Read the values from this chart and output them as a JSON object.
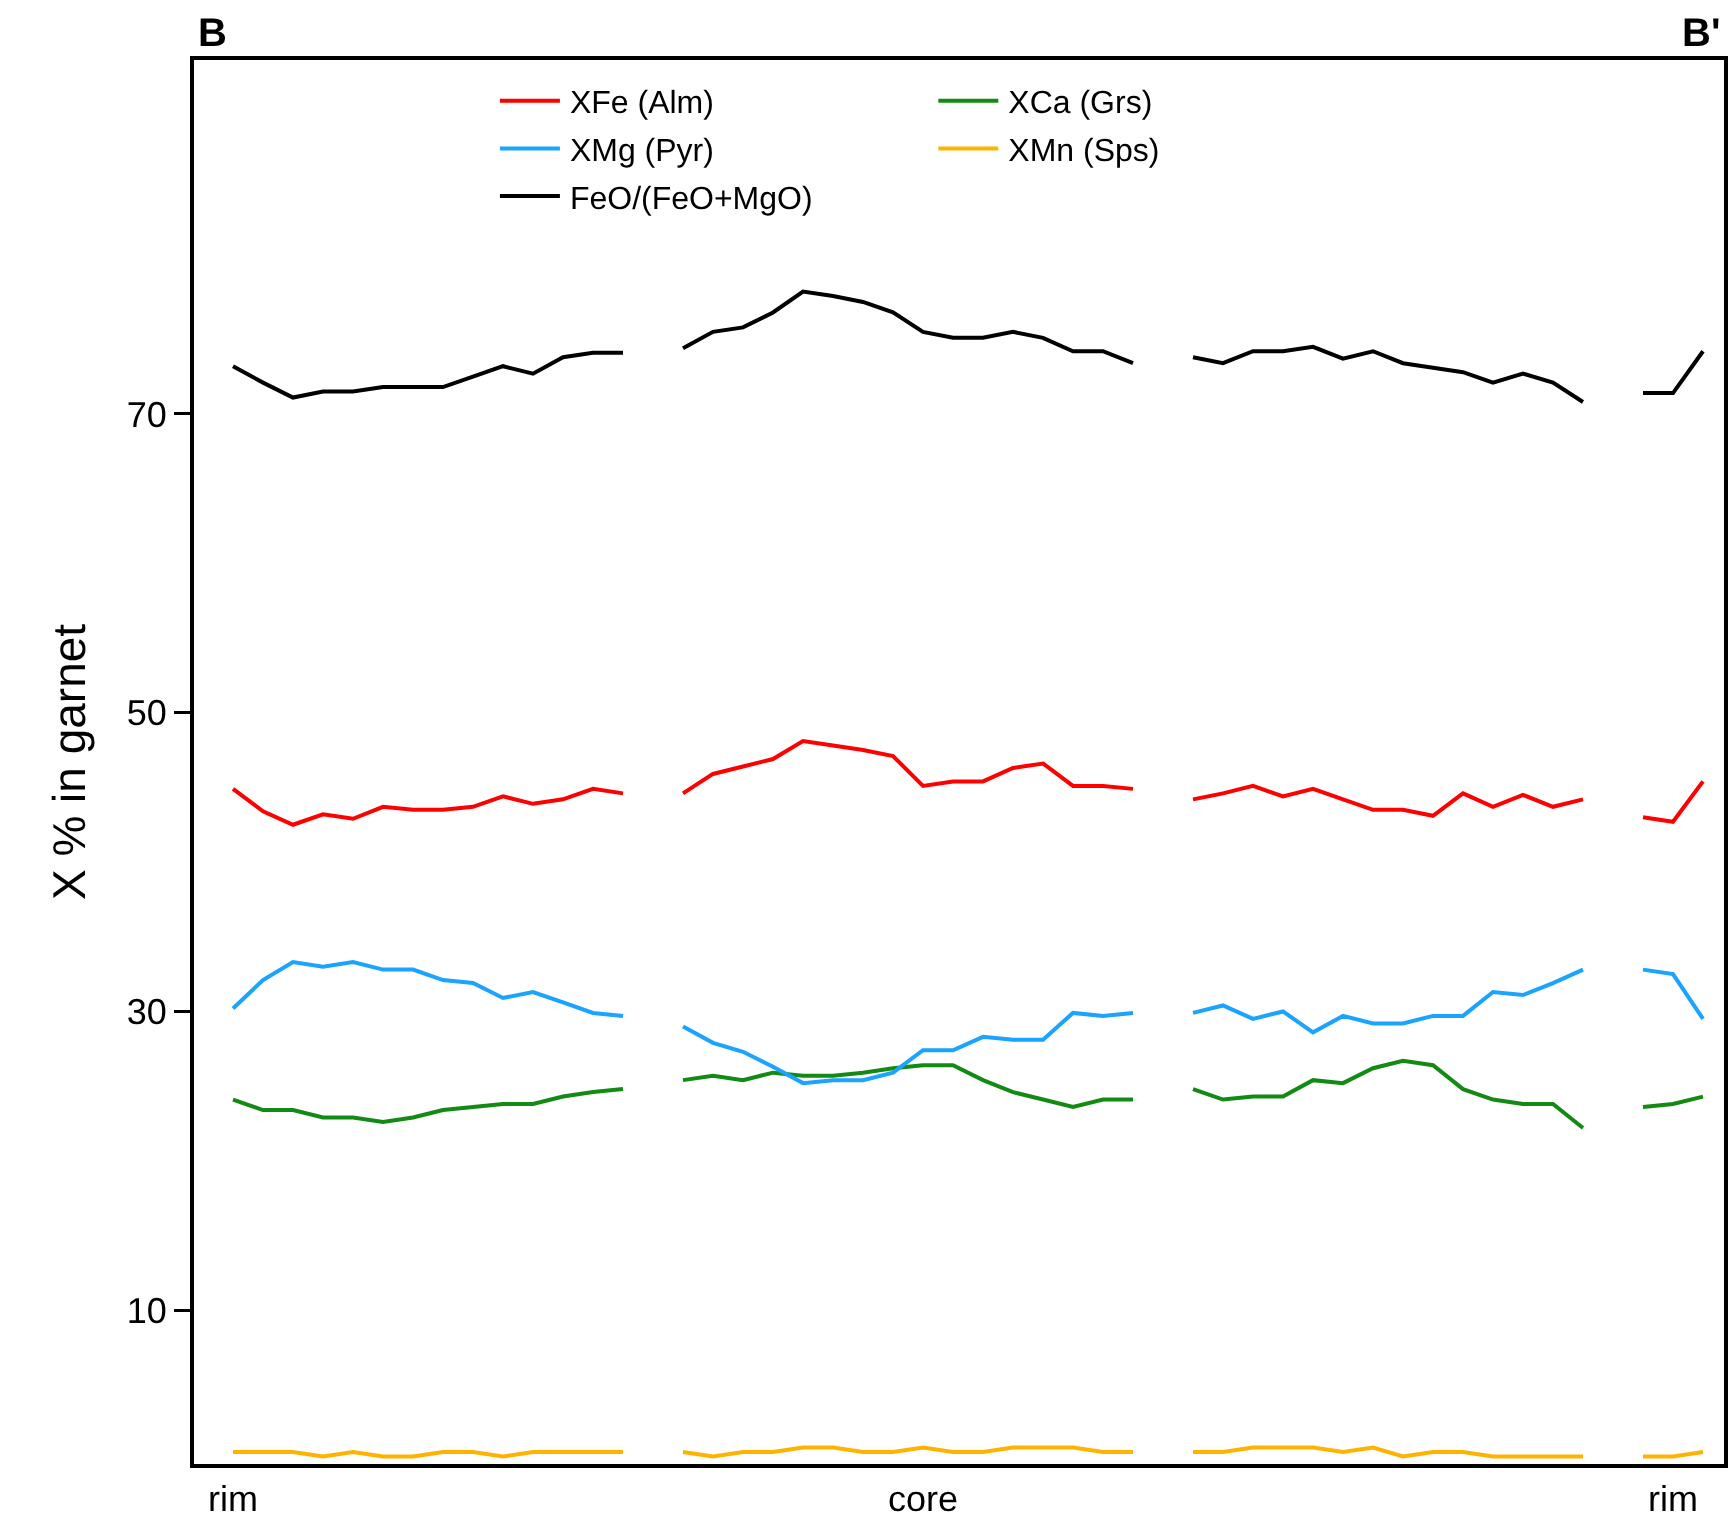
{
  "chart_data": {
    "type": "line",
    "ylabel": "X % in garnet",
    "annotations": [
      "B",
      "B'"
    ],
    "categories": [
      "rim",
      null,
      null,
      null,
      null,
      null,
      null,
      null,
      null,
      null,
      null,
      null,
      null,
      null,
      null,
      null,
      null,
      null,
      null,
      null,
      null,
      null,
      null,
      "core",
      null,
      null,
      null,
      null,
      null,
      null,
      null,
      null,
      null,
      null,
      null,
      null,
      null,
      null,
      null,
      null,
      null,
      null,
      null,
      null,
      null,
      null,
      null,
      null,
      "rim",
      null
    ],
    "ylim": [
      -0.3,
      93.7
    ],
    "yticks": [
      10,
      30,
      50,
      70
    ],
    "grid": false,
    "legend": "top",
    "line_style": "solid",
    "marker": "none",
    "series": [
      {
        "name": "XFe (Alm)",
        "color": "#ff0000",
        "values": [
          44.9,
          43.4,
          42.5,
          43.2,
          42.9,
          43.7,
          43.5,
          43.5,
          43.7,
          44.4,
          43.9,
          44.2,
          44.9,
          44.6,
          null,
          44.6,
          45.9,
          46.4,
          46.9,
          48.1,
          47.8,
          47.5,
          47.1,
          45.1,
          45.4,
          45.4,
          46.3,
          46.6,
          45.1,
          45.1,
          44.9,
          null,
          44.2,
          44.6,
          45.1,
          44.4,
          44.9,
          44.2,
          43.5,
          43.5,
          43.1,
          44.6,
          43.7,
          44.5,
          43.7,
          44.2,
          null,
          43.0,
          42.7,
          45.4
        ]
      },
      {
        "name": "XCa (Grs)",
        "color": "#138a13",
        "values": [
          24.1,
          23.4,
          23.4,
          22.9,
          22.9,
          22.6,
          22.9,
          23.4,
          23.6,
          23.8,
          23.8,
          24.3,
          24.6,
          24.8,
          null,
          25.4,
          25.7,
          25.4,
          25.9,
          25.7,
          25.7,
          25.9,
          26.2,
          26.4,
          26.4,
          25.4,
          24.6,
          24.1,
          23.6,
          24.1,
          24.1,
          null,
          24.8,
          24.1,
          24.3,
          24.3,
          25.4,
          25.2,
          26.2,
          26.7,
          26.4,
          24.8,
          24.1,
          23.8,
          23.8,
          22.2,
          null,
          23.6,
          23.8,
          24.3
        ]
      },
      {
        "name": "XMg (Pyr)",
        "color": "#1aa3ff",
        "values": [
          30.2,
          32.1,
          33.3,
          33.0,
          33.3,
          32.8,
          32.8,
          32.1,
          31.9,
          30.9,
          31.3,
          30.6,
          29.9,
          29.7,
          null,
          29.0,
          27.9,
          27.3,
          26.3,
          25.2,
          25.4,
          25.4,
          25.9,
          27.4,
          27.4,
          28.3,
          28.1,
          28.1,
          29.9,
          29.7,
          29.9,
          null,
          29.9,
          30.4,
          29.5,
          30.0,
          28.6,
          29.7,
          29.2,
          29.2,
          29.7,
          29.7,
          31.3,
          31.1,
          31.9,
          32.8,
          null,
          32.8,
          32.5,
          29.5
        ]
      },
      {
        "name": "XMn (Sps)",
        "color": "#ffb300",
        "values": [
          0.5,
          0.5,
          0.5,
          0.2,
          0.5,
          0.2,
          0.2,
          0.5,
          0.5,
          0.2,
          0.5,
          0.5,
          0.5,
          0.5,
          null,
          0.5,
          0.2,
          0.5,
          0.5,
          0.8,
          0.8,
          0.5,
          0.5,
          0.8,
          0.5,
          0.5,
          0.8,
          0.8,
          0.8,
          0.5,
          0.5,
          null,
          0.5,
          0.5,
          0.8,
          0.8,
          0.8,
          0.5,
          0.8,
          0.2,
          0.5,
          0.5,
          0.2,
          0.2,
          0.2,
          0.2,
          null,
          0.2,
          0.2,
          0.5
        ]
      },
      {
        "name": "FeO/(FeO+MgO)",
        "color": "#000000",
        "values": [
          73.2,
          72.1,
          71.1,
          71.5,
          71.5,
          71.8,
          71.8,
          71.8,
          72.5,
          73.2,
          72.7,
          73.8,
          74.1,
          74.1,
          null,
          74.4,
          75.5,
          75.8,
          76.8,
          78.2,
          77.9,
          77.5,
          76.8,
          75.5,
          75.1,
          75.1,
          75.5,
          75.1,
          74.2,
          74.2,
          73.4,
          null,
          73.8,
          73.4,
          74.2,
          74.2,
          74.5,
          73.7,
          74.2,
          73.4,
          73.1,
          72.8,
          72.1,
          72.7,
          72.1,
          70.8,
          null,
          71.4,
          71.4,
          74.2
        ]
      }
    ]
  }
}
